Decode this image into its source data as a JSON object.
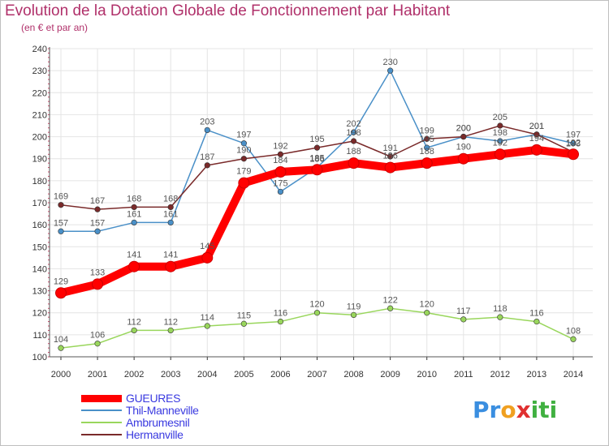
{
  "chart_data": {
    "type": "line",
    "title": "Evolution de la Dotation Globale de Fonctionnement par Habitant",
    "subtitle": "(en € et par an)",
    "xlabel": "",
    "ylabel": "",
    "x": [
      "2000",
      "2001",
      "2002",
      "2003",
      "2004",
      "2005",
      "2006",
      "2007",
      "2008",
      "2009",
      "2010",
      "2011",
      "2012",
      "2013",
      "2014"
    ],
    "y_ticks": [
      "100",
      "110",
      "120",
      "130",
      "140",
      "150",
      "160",
      "170",
      "180",
      "190",
      "200",
      "210",
      "220",
      "230",
      "240"
    ],
    "ylim": [
      100,
      240
    ],
    "grid": true,
    "legend_position": "bottom-left",
    "series": [
      {
        "name": "GUEURES",
        "color": "#ff0000",
        "values": [
          129,
          133,
          141,
          141,
          145,
          179,
          184,
          185,
          188,
          186,
          188,
          190,
          192,
          194,
          192
        ]
      },
      {
        "name": "Thil-Manneville",
        "color": "#4a90c8",
        "values": [
          157,
          157,
          161,
          161,
          203,
          197,
          175,
          186,
          202,
          230,
          195,
          200,
          198,
          201,
          197
        ]
      },
      {
        "name": "Ambrumesnil",
        "color": "#99d65c",
        "values": [
          104,
          106,
          112,
          112,
          114,
          115,
          116,
          120,
          119,
          122,
          120,
          117,
          118,
          116,
          108
        ]
      },
      {
        "name": "Hermanville",
        "color": "#7a2a2a",
        "values": [
          169,
          167,
          168,
          168,
          187,
          190,
          192,
          195,
          198,
          191,
          199,
          200,
          205,
          201,
          193
        ]
      }
    ]
  },
  "logo": {
    "p1": "Pr",
    "p2": "o",
    "p3": "x",
    "p4": "iti"
  }
}
